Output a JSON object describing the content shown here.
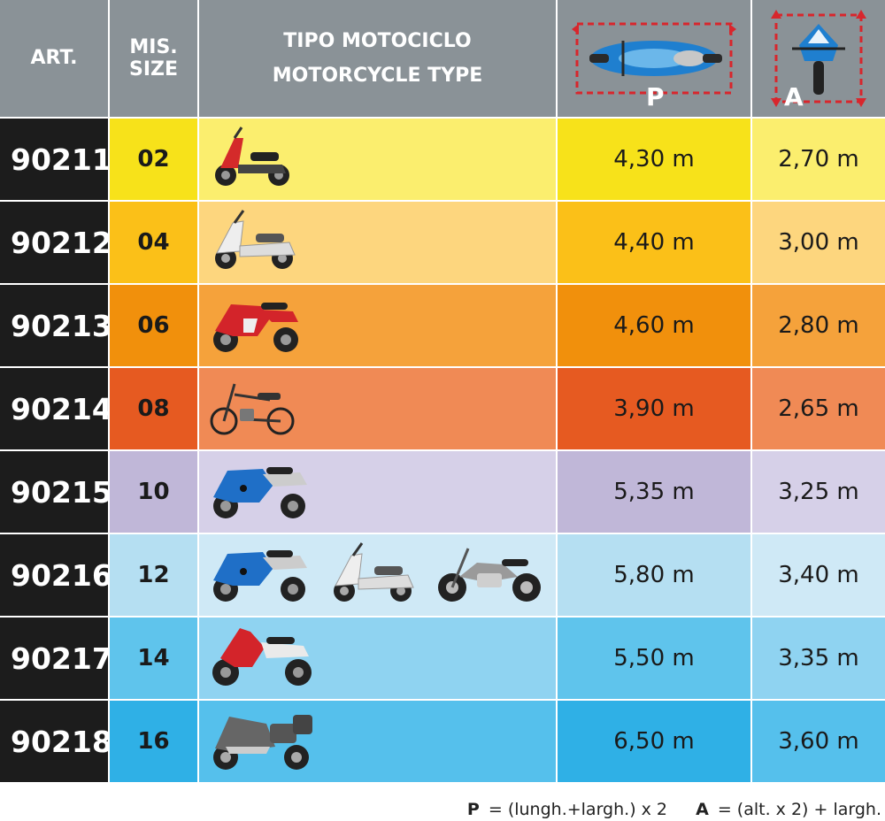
{
  "header": {
    "art": "ART.",
    "size_line1": "MIS.",
    "size_line2": "SIZE",
    "type_line1": "TIPO MOTOCICLO",
    "type_line2": "MOTORCYCLE TYPE",
    "p_letter": "P",
    "a_letter": "A"
  },
  "rows": [
    {
      "art": "90211",
      "size": "02",
      "p": "4,30 m",
      "a": "2,70 m",
      "bikes": [
        "scooter-red"
      ],
      "colors": {
        "size": "#f7e21a",
        "type": "#fbee6e",
        "p": "#f7e21a",
        "a": "#fbee6e"
      }
    },
    {
      "art": "90212",
      "size": "04",
      "p": "4,40 m",
      "a": "3,00 m",
      "bikes": [
        "maxi-scooter-white"
      ],
      "colors": {
        "size": "#fbc018",
        "type": "#fdd67e",
        "p": "#fbc018",
        "a": "#fdd67e"
      }
    },
    {
      "art": "90213",
      "size": "06",
      "p": "4,60 m",
      "a": "2,80 m",
      "bikes": [
        "sport-red"
      ],
      "colors": {
        "size": "#f1900c",
        "type": "#f5a23b",
        "p": "#f1900c",
        "a": "#f5a23b"
      }
    },
    {
      "art": "90214",
      "size": "08",
      "p": "3,90 m",
      "a": "2,65 m",
      "bikes": [
        "moped"
      ],
      "colors": {
        "size": "#e65a21",
        "type": "#f08a55",
        "p": "#e65a21",
        "a": "#f08a55"
      }
    },
    {
      "art": "90215",
      "size": "10",
      "p": "5,35 m",
      "a": "3,25 m",
      "bikes": [
        "sport-blue"
      ],
      "colors": {
        "size": "#c0b7d8",
        "type": "#d6d0e8",
        "p": "#c0b7d8",
        "a": "#d6d0e8"
      }
    },
    {
      "art": "90216",
      "size": "12",
      "p": "5,80 m",
      "a": "3,40 m",
      "bikes": [
        "sport-blue",
        "maxi-scooter-white",
        "cruiser"
      ],
      "colors": {
        "size": "#b5dff2",
        "type": "#cfe9f6",
        "p": "#b5dff2",
        "a": "#cfe9f6"
      }
    },
    {
      "art": "90217",
      "size": "14",
      "p": "5,50 m",
      "a": "3,35 m",
      "bikes": [
        "enduro-red"
      ],
      "colors": {
        "size": "#5fc4ec",
        "type": "#8fd3f1",
        "p": "#5fc4ec",
        "a": "#8fd3f1"
      }
    },
    {
      "art": "90218",
      "size": "16",
      "p": "6,50 m",
      "a": "3,60 m",
      "bikes": [
        "tourer"
      ],
      "colors": {
        "size": "#2fb0e6",
        "type": "#55c0ec",
        "p": "#2fb0e6",
        "a": "#55c0ec"
      }
    }
  ],
  "footer": {
    "p_label": "P",
    "p_formula": "= (lungh.+largh.) x 2",
    "a_label": "A",
    "a_formula": "= (alt. x 2) + largh."
  }
}
